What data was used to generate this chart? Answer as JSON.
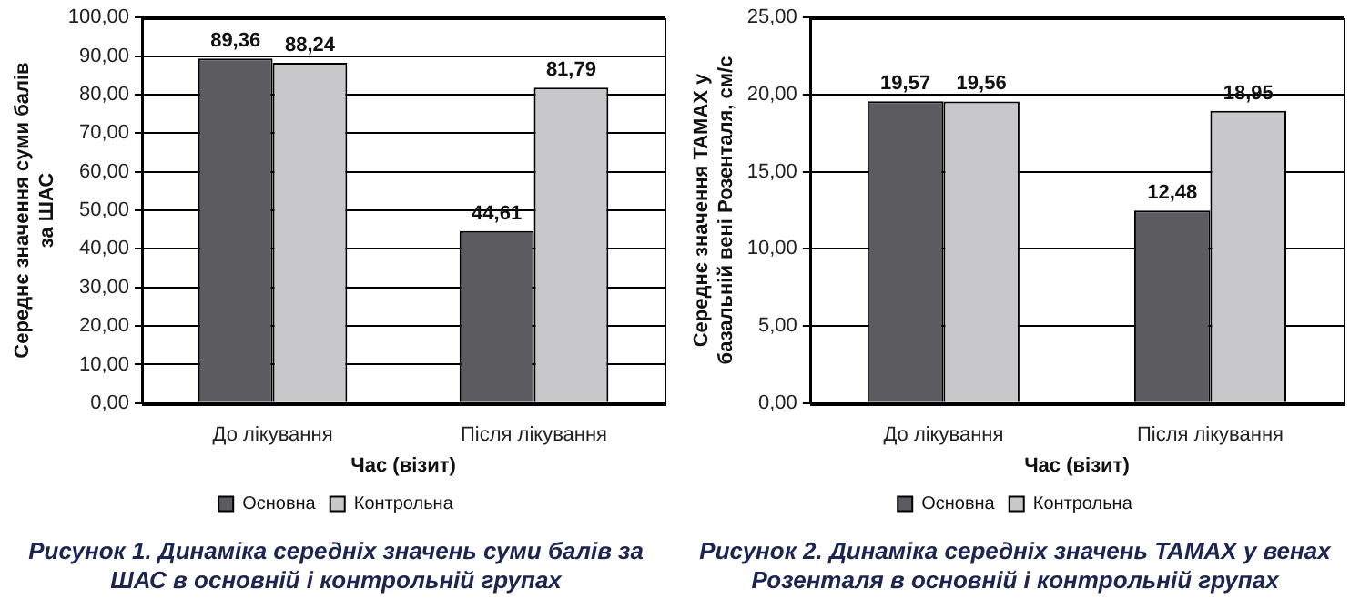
{
  "chart_data": [
    {
      "type": "bar",
      "title": "Рисунок 1. Динаміка середніх значень суми балів за ШАС в основній і контрольній групах",
      "xlabel": "Час (візит)",
      "ylabel": "Середнє значення суми балів за ШАС",
      "categories": [
        "До лікування",
        "Після лікування"
      ],
      "series": [
        {
          "name": "Основна",
          "color": "#5c5b60",
          "values": [
            89.36,
            44.61
          ],
          "value_labels": [
            "89,36",
            "44,61"
          ]
        },
        {
          "name": "Контрольна",
          "color": "#c8c8ca",
          "values": [
            88.24,
            81.79
          ],
          "value_labels": [
            "88,24",
            "81,79"
          ]
        }
      ],
      "ylim": [
        0,
        100
      ],
      "yticks": [
        {
          "value": 0,
          "label": "0,00"
        },
        {
          "value": 10,
          "label": "10,00"
        },
        {
          "value": 20,
          "label": "20,00"
        },
        {
          "value": 30,
          "label": "30,00"
        },
        {
          "value": 40,
          "label": "40,00"
        },
        {
          "value": 50,
          "label": "50,00"
        },
        {
          "value": 60,
          "label": "60,00"
        },
        {
          "value": 70,
          "label": "70,00"
        },
        {
          "value": 80,
          "label": "80,00"
        },
        {
          "value": 90,
          "label": "90,00"
        },
        {
          "value": 100,
          "label": "100,00"
        }
      ],
      "grid": "y",
      "legend": "bottom"
    },
    {
      "type": "bar",
      "title": "Рисунок 2. Динаміка середніх значень TAMAX у венах Розенталя в основній і контрольній групах",
      "xlabel": "Час (візит)",
      "ylabel": "Середнє значення TAMAX у базальній вені Розенталя, см/с",
      "categories": [
        "До лікування",
        "Після лікування"
      ],
      "series": [
        {
          "name": "Основна",
          "color": "#5c5b60",
          "values": [
            19.57,
            12.48
          ],
          "value_labels": [
            "19,57",
            "12,48"
          ]
        },
        {
          "name": "Контрольна",
          "color": "#c8c8ca",
          "values": [
            19.56,
            18.95
          ],
          "value_labels": [
            "19,56",
            "18,95"
          ]
        }
      ],
      "ylim": [
        0,
        25
      ],
      "yticks": [
        {
          "value": 0,
          "label": "0,00"
        },
        {
          "value": 5,
          "label": "5,00"
        },
        {
          "value": 10,
          "label": "10,00"
        },
        {
          "value": 15,
          "label": "15,00"
        },
        {
          "value": 20,
          "label": "20,00"
        },
        {
          "value": 25,
          "label": "25,00"
        }
      ],
      "grid": "y",
      "legend": "bottom"
    }
  ]
}
